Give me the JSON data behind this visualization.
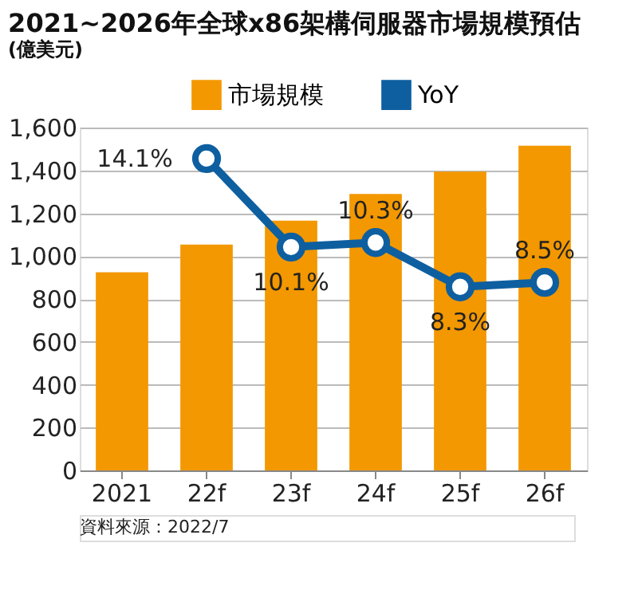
{
  "chart_data": {
    "type": "bar",
    "title": "2021~2026年全球x86架構伺服器市場規模預估",
    "subtitle": "(億美元)",
    "categories": [
      "2021",
      "22f",
      "23f",
      "24f",
      "25f",
      "26f"
    ],
    "series": [
      {
        "name": "市場規模",
        "color": "#f39800",
        "values": [
          925,
          1054,
          1166,
          1290,
          1394,
          1515
        ]
      },
      {
        "name": "YoY",
        "type": "line",
        "axis": "y2",
        "color": "#0e5fa0",
        "marker": "circle",
        "values": [
          null,
          14.1,
          10.1,
          10.3,
          8.3,
          8.5
        ],
        "value_labels": [
          null,
          "14.1%",
          "10.1%",
          "10.3%",
          "8.3%",
          "8.5%"
        ]
      }
    ],
    "ylim": [
      0,
      1600
    ],
    "yticks": [
      0,
      200,
      400,
      600,
      800,
      {
        "value": 1000,
        "label": "1,000"
      },
      {
        "value": 1200,
        "label": "1,200"
      },
      {
        "value": 1400,
        "label": "1,400"
      },
      {
        "value": 1600,
        "label": "1,600"
      }
    ],
    "y2lim": [
      0,
      15.5
    ],
    "grid": "y",
    "legend": "top",
    "annotations": [
      "資料來源：2022/7"
    ]
  }
}
